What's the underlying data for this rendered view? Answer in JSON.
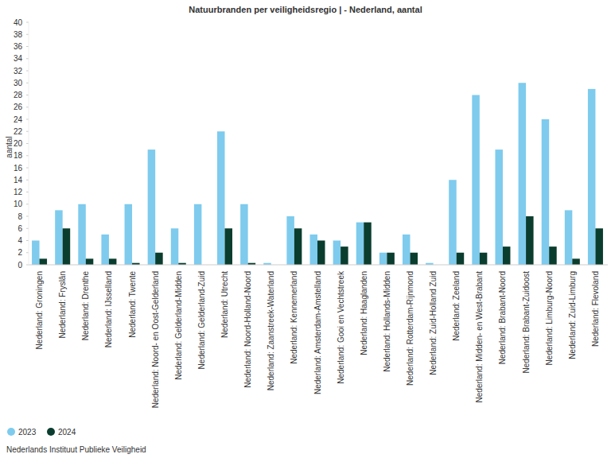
{
  "chart_data": {
    "type": "bar",
    "title": "Natuurbranden per veiligheidsregio | - Nederland, aantal",
    "y_label": "aantal",
    "source": "Nederlands Instituut Publieke Veiligheid",
    "categories": [
      "Nederland: Groningen",
      "Nederland: Fryslân",
      "Nederland: Drenthe",
      "Nederland: IJsselland",
      "Nederland: Twente",
      "Nederland: Noord- en Oost-Gelderland",
      "Nederland: Gelderland-Midden",
      "Nederland: Gelderland-Zuid",
      "Nederland: Utrecht",
      "Nederland: Noord-Holland-Noord",
      "Nederland: Zaanstreek-Waterland",
      "Nederland: Kennemerland",
      "Nederland: Amsterdam-Amstelland",
      "Nederland: Gooi en Vechtstreek",
      "Nederland: Haaglanden",
      "Nederland: Hollands-Midden",
      "Nederland: Rotterdam-Rijnmond",
      "Nederland: Zuid-Holland Zuid",
      "Nederland: Zeeland",
      "Nederland: Midden- en West-Brabant",
      "Nederland: Brabant-Noord",
      "Nederland: Brabant-Zuidoost",
      "Nederland: Limburg-Noord",
      "Nederland: Zuid-Limburg",
      "Nederland: Flevoland"
    ],
    "series": [
      {
        "name": "2023",
        "color": "#7ecbee",
        "values": [
          4,
          9,
          10,
          5,
          10,
          19,
          6,
          10,
          22,
          10,
          0.3,
          8,
          5,
          4,
          7,
          2,
          5,
          0.3,
          14,
          28,
          19,
          30,
          24,
          9,
          29
        ]
      },
      {
        "name": "2024",
        "color": "#0b3d2e",
        "values": [
          1,
          6,
          1,
          1,
          0.3,
          2,
          0.3,
          0,
          6,
          0.3,
          0,
          6,
          4,
          3,
          7,
          2,
          2,
          0,
          2,
          2,
          3,
          8,
          3,
          1,
          6
        ]
      }
    ],
    "ylim": [
      0,
      40
    ],
    "yticks": [
      0,
      2,
      4,
      6,
      8,
      10,
      12,
      14,
      16,
      18,
      20,
      22,
      24,
      26,
      28,
      30,
      32,
      34,
      36,
      38,
      40
    ],
    "grid": false,
    "legend": "bottom-left"
  }
}
